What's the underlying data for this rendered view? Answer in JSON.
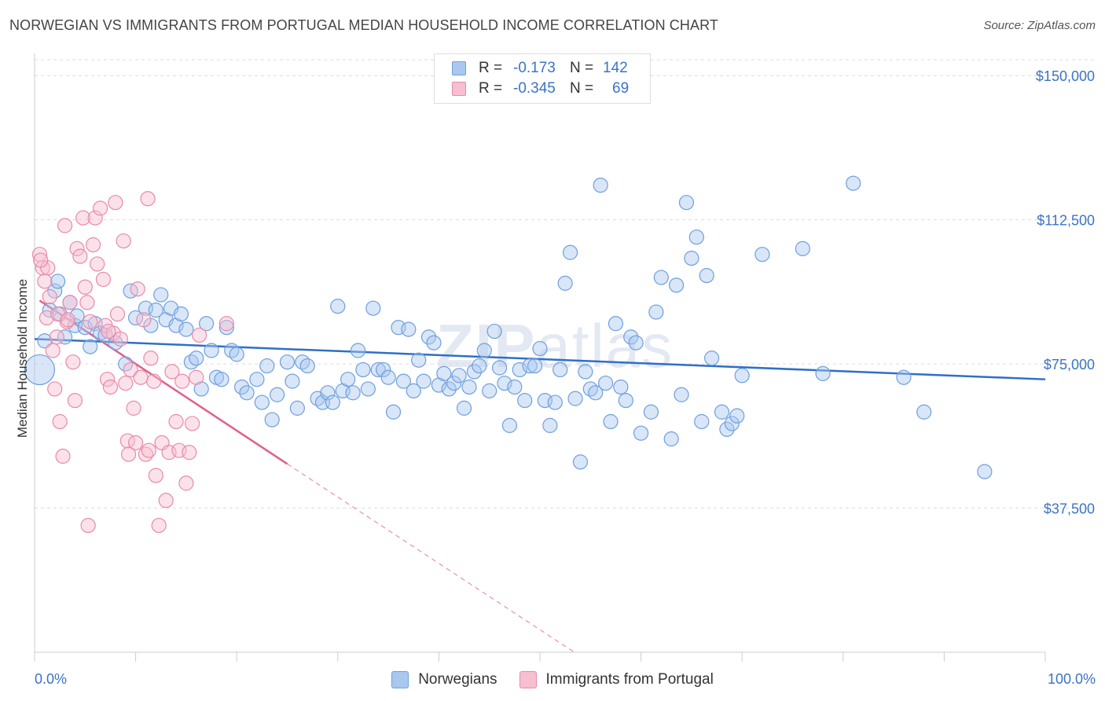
{
  "title": "NORWEGIAN VS IMMIGRANTS FROM PORTUGAL MEDIAN HOUSEHOLD INCOME CORRELATION CHART",
  "source": "Source: ZipAtlas.com",
  "watermark": {
    "zip": "ZIP",
    "atlas": "atlas"
  },
  "legend": {
    "rows": [
      {
        "r_label": "R =",
        "r_value": "-0.173",
        "n_label": "N =",
        "n_value": "142",
        "color": "#a9c8f0",
        "border": "#6f9fdc"
      },
      {
        "r_label": "R =",
        "r_value": "-0.345",
        "n_label": "N =",
        "n_value": "69",
        "color": "#f7bfd0",
        "border": "#e88aa8"
      }
    ]
  },
  "bottom_legend": {
    "norwegians": "Norwegians",
    "portugal": "Immigrants from Portugal"
  },
  "chart_data": {
    "type": "scatter",
    "xlabel": "",
    "ylabel": "Median Household Income",
    "xlim": [
      0,
      100
    ],
    "ylim": [
      0,
      157000
    ],
    "x_ticks": [
      "0.0%",
      "100.0%"
    ],
    "y_ticks": [
      {
        "value": 37500,
        "label": "$37,500"
      },
      {
        "value": 75000,
        "label": "$75,000"
      },
      {
        "value": 112500,
        "label": "$112,500"
      },
      {
        "value": 150000,
        "label": "$150,000"
      }
    ],
    "colors": {
      "norwegians": "#6f9fdc",
      "norwegians_line": "#2f6fc8",
      "portugal": "#e88aa8",
      "portugal_line": "#e0608a"
    },
    "series": [
      {
        "name": "Norwegians",
        "trend": {
          "x1": 0,
          "y1": 81500,
          "x2": 100,
          "y2": 71000
        },
        "points": [
          [
            0.5,
            73500
          ],
          [
            1,
            81000
          ],
          [
            1.5,
            89000
          ],
          [
            2,
            94000
          ],
          [
            2.3,
            96500
          ],
          [
            2.5,
            88000
          ],
          [
            3,
            82000
          ],
          [
            3.5,
            91000
          ],
          [
            4,
            85000
          ],
          [
            4.2,
            87500
          ],
          [
            5,
            84500
          ],
          [
            5.5,
            79500
          ],
          [
            6,
            85500
          ],
          [
            6.5,
            83000
          ],
          [
            7,
            82500
          ],
          [
            8,
            80500
          ],
          [
            9,
            75000
          ],
          [
            9.5,
            94000
          ],
          [
            10,
            87000
          ],
          [
            11,
            89500
          ],
          [
            11.5,
            85000
          ],
          [
            12,
            89000
          ],
          [
            12.5,
            93000
          ],
          [
            13,
            86500
          ],
          [
            13.5,
            89500
          ],
          [
            14,
            85000
          ],
          [
            14.5,
            88000
          ],
          [
            15,
            84000
          ],
          [
            15.5,
            75500
          ],
          [
            16,
            76500
          ],
          [
            16.5,
            68500
          ],
          [
            17,
            85500
          ],
          [
            17.5,
            78500
          ],
          [
            18,
            71500
          ],
          [
            18.5,
            71000
          ],
          [
            19,
            84500
          ],
          [
            19.5,
            78500
          ],
          [
            20,
            77500
          ],
          [
            20.5,
            69000
          ],
          [
            21,
            67500
          ],
          [
            22,
            71000
          ],
          [
            22.5,
            65000
          ],
          [
            23,
            74500
          ],
          [
            23.5,
            60500
          ],
          [
            24,
            67000
          ],
          [
            25,
            75500
          ],
          [
            25.5,
            70500
          ],
          [
            26,
            63500
          ],
          [
            26.5,
            75500
          ],
          [
            27,
            74500
          ],
          [
            28,
            66000
          ],
          [
            28.5,
            65000
          ],
          [
            29,
            67500
          ],
          [
            29.5,
            65000
          ],
          [
            30,
            90000
          ],
          [
            30.5,
            68000
          ],
          [
            31,
            71000
          ],
          [
            31.5,
            67500
          ],
          [
            32,
            78500
          ],
          [
            32.5,
            73500
          ],
          [
            33,
            68500
          ],
          [
            33.5,
            89500
          ],
          [
            34,
            73500
          ],
          [
            34.5,
            73500
          ],
          [
            35,
            71500
          ],
          [
            35.5,
            62500
          ],
          [
            36,
            84500
          ],
          [
            36.5,
            70500
          ],
          [
            37,
            84000
          ],
          [
            37.5,
            68000
          ],
          [
            38,
            76000
          ],
          [
            38.5,
            70500
          ],
          [
            39,
            82000
          ],
          [
            39.5,
            80500
          ],
          [
            40,
            69500
          ],
          [
            40.5,
            72500
          ],
          [
            41,
            68500
          ],
          [
            41.5,
            70000
          ],
          [
            42,
            72000
          ],
          [
            42.5,
            63500
          ],
          [
            43,
            69000
          ],
          [
            43.5,
            73000
          ],
          [
            44,
            74500
          ],
          [
            44.5,
            78500
          ],
          [
            45,
            68000
          ],
          [
            45.5,
            83500
          ],
          [
            46,
            74000
          ],
          [
            46.5,
            70000
          ],
          [
            47,
            59000
          ],
          [
            47.5,
            69000
          ],
          [
            48,
            73500
          ],
          [
            48.5,
            65500
          ],
          [
            49,
            74500
          ],
          [
            49.5,
            74500
          ],
          [
            50,
            79000
          ],
          [
            50.5,
            65500
          ],
          [
            51,
            59000
          ],
          [
            51.5,
            65000
          ],
          [
            52,
            73500
          ],
          [
            52.5,
            96000
          ],
          [
            53,
            104000
          ],
          [
            53.5,
            66000
          ],
          [
            54,
            49500
          ],
          [
            54.5,
            73000
          ],
          [
            55,
            68500
          ],
          [
            55.5,
            67500
          ],
          [
            56,
            121500
          ],
          [
            56.5,
            70000
          ],
          [
            57,
            60000
          ],
          [
            57.5,
            85500
          ],
          [
            58,
            69000
          ],
          [
            58.5,
            65500
          ],
          [
            59,
            82000
          ],
          [
            59.5,
            80500
          ],
          [
            60,
            57000
          ],
          [
            61,
            62500
          ],
          [
            61.5,
            88500
          ],
          [
            62,
            97500
          ],
          [
            63,
            55500
          ],
          [
            63.5,
            95500
          ],
          [
            64,
            67000
          ],
          [
            64.5,
            117000
          ],
          [
            65,
            102500
          ],
          [
            65.5,
            108000
          ],
          [
            66,
            60000
          ],
          [
            66.5,
            98000
          ],
          [
            67,
            76500
          ],
          [
            68,
            62500
          ],
          [
            68.5,
            58000
          ],
          [
            69,
            59500
          ],
          [
            69.5,
            61500
          ],
          [
            70,
            72000
          ],
          [
            72,
            103500
          ],
          [
            76,
            105000
          ],
          [
            78,
            72500
          ],
          [
            81,
            122000
          ],
          [
            86,
            71500
          ],
          [
            88,
            62500
          ],
          [
            94,
            47000
          ]
        ]
      },
      {
        "name": "Immigrants from Portugal",
        "trend": {
          "x1": 0.5,
          "y1": 91500,
          "x2": 25,
          "y2": 49000,
          "dash_to_x": 65,
          "dash_to_y": -20000
        },
        "points": [
          [
            0.5,
            103500
          ],
          [
            0.8,
            100000
          ],
          [
            1,
            96500
          ],
          [
            1.2,
            87000
          ],
          [
            1.5,
            92500
          ],
          [
            1.8,
            78500
          ],
          [
            2,
            68500
          ],
          [
            2.2,
            82000
          ],
          [
            2.5,
            60000
          ],
          [
            2.8,
            51000
          ],
          [
            3,
            111000
          ],
          [
            3.2,
            86000
          ],
          [
            3.5,
            91000
          ],
          [
            3.8,
            75500
          ],
          [
            4,
            65500
          ],
          [
            4.2,
            105000
          ],
          [
            4.5,
            103000
          ],
          [
            4.8,
            113000
          ],
          [
            5,
            95000
          ],
          [
            5.2,
            91000
          ],
          [
            5.5,
            86000
          ],
          [
            5.8,
            106000
          ],
          [
            6,
            113000
          ],
          [
            6.2,
            101000
          ],
          [
            6.5,
            115500
          ],
          [
            6.8,
            97000
          ],
          [
            7,
            85000
          ],
          [
            7.2,
            71000
          ],
          [
            7.5,
            69000
          ],
          [
            7.8,
            83000
          ],
          [
            8,
            117000
          ],
          [
            8.2,
            88000
          ],
          [
            8.5,
            81500
          ],
          [
            8.8,
            107000
          ],
          [
            9,
            70000
          ],
          [
            9.2,
            55000
          ],
          [
            9.5,
            73500
          ],
          [
            9.8,
            63500
          ],
          [
            10,
            54500
          ],
          [
            10.2,
            94500
          ],
          [
            10.5,
            71500
          ],
          [
            10.8,
            86500
          ],
          [
            11,
            51500
          ],
          [
            11.2,
            118000
          ],
          [
            11.5,
            76500
          ],
          [
            11.8,
            70500
          ],
          [
            12,
            46000
          ],
          [
            12.3,
            33000
          ],
          [
            12.6,
            54500
          ],
          [
            13,
            39500
          ],
          [
            13.3,
            52000
          ],
          [
            13.6,
            73000
          ],
          [
            14,
            60000
          ],
          [
            14.3,
            52500
          ],
          [
            14.6,
            70500
          ],
          [
            15,
            44000
          ],
          [
            15.3,
            52000
          ],
          [
            15.6,
            59500
          ],
          [
            16,
            71500
          ],
          [
            16.3,
            82500
          ],
          [
            19,
            85500
          ],
          [
            1.3,
            100000
          ],
          [
            2.3,
            88000
          ],
          [
            3.3,
            86500
          ],
          [
            5.3,
            33000
          ],
          [
            7.3,
            83500
          ],
          [
            9.3,
            51500
          ],
          [
            11.3,
            52500
          ],
          [
            0.6,
            102000
          ]
        ]
      }
    ]
  }
}
